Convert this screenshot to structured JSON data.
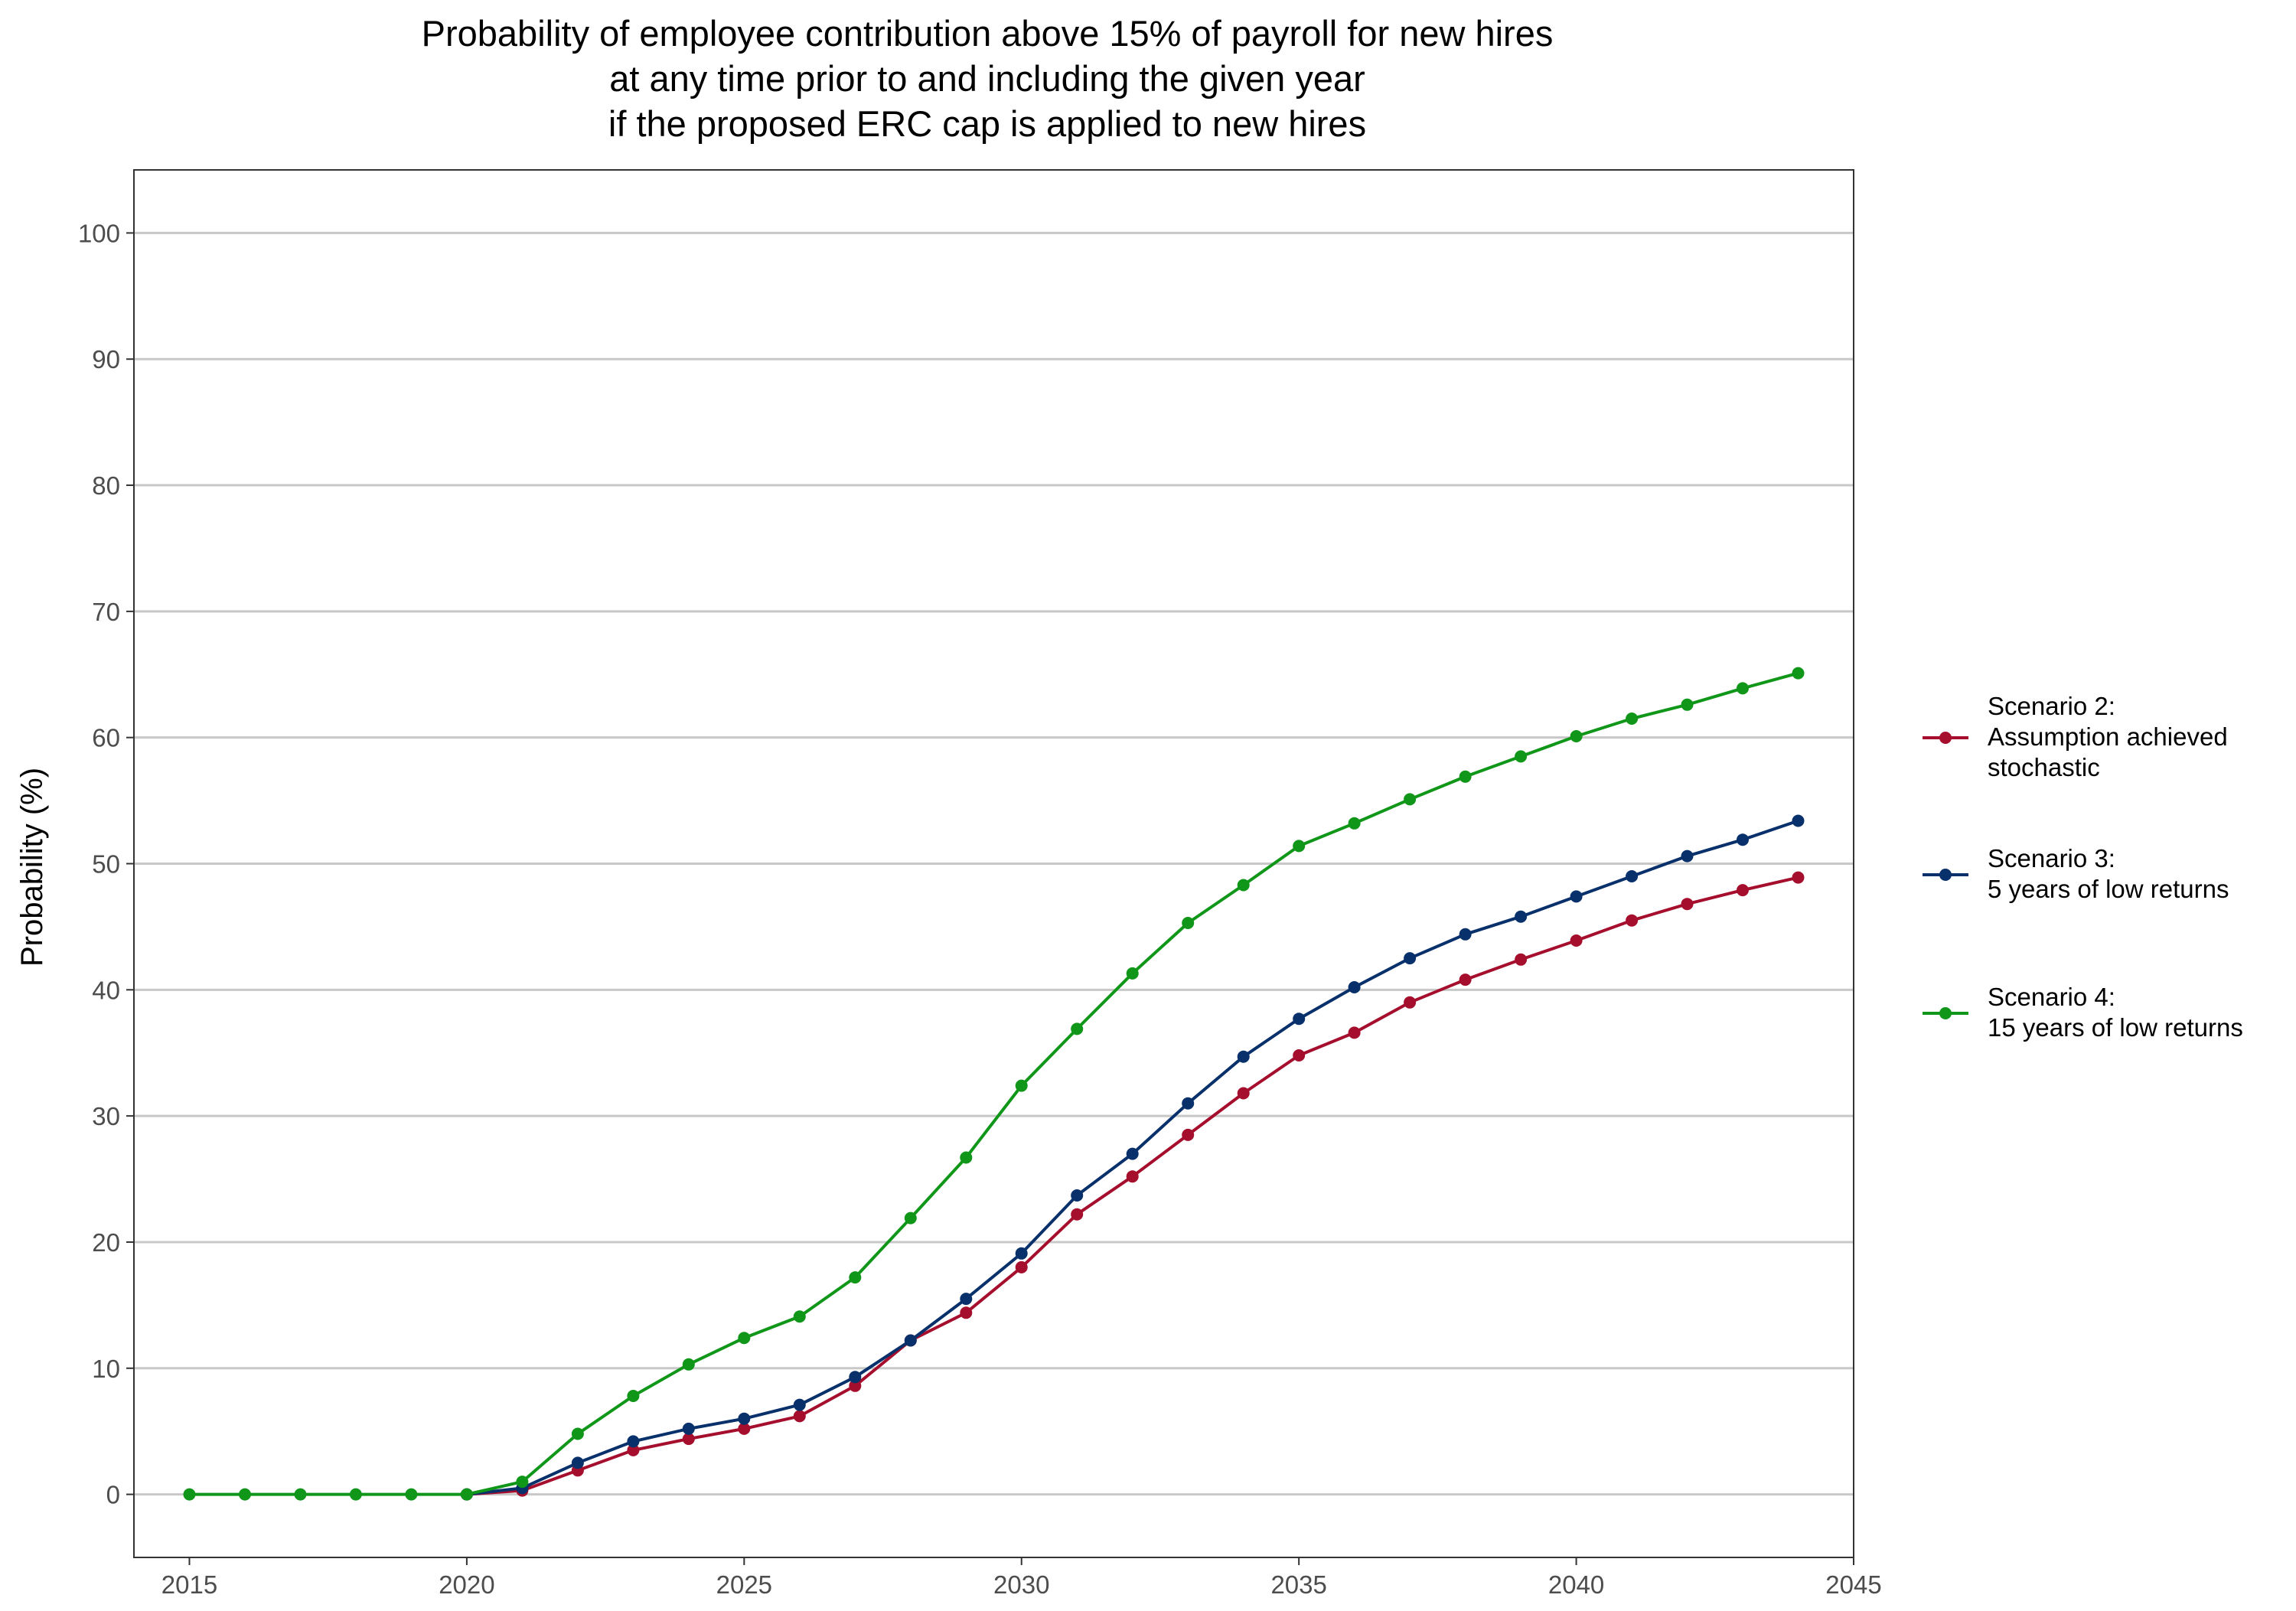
{
  "chart_data": {
    "type": "line",
    "title_lines": [
      "Probability of employee contribution above 15% of payroll for new hires",
      "at any time prior to and including the given year",
      "if the proposed ERC cap is applied to new hires"
    ],
    "xlabel": "",
    "ylabel": "Probability (%)",
    "xlim": [
      2014,
      2045
    ],
    "ylim": [
      -5,
      105
    ],
    "x_ticks": [
      2015,
      2020,
      2025,
      2030,
      2035,
      2040,
      2045
    ],
    "y_ticks": [
      0,
      10,
      20,
      30,
      40,
      50,
      60,
      70,
      80,
      90,
      100
    ],
    "grid": "horizontal major",
    "legend_position": "right",
    "x": [
      2015,
      2016,
      2017,
      2018,
      2019,
      2020,
      2021,
      2022,
      2023,
      2024,
      2025,
      2026,
      2027,
      2028,
      2029,
      2030,
      2031,
      2032,
      2033,
      2034,
      2035,
      2036,
      2037,
      2038,
      2039,
      2040,
      2041,
      2042,
      2043,
      2044
    ],
    "series": [
      {
        "name": "Scenario 2:\nAssumption achieved\nstochastic",
        "color": "#a50f2d",
        "values": [
          null,
          null,
          null,
          null,
          null,
          0.0,
          0.3,
          1.9,
          3.5,
          4.4,
          5.2,
          6.2,
          8.6,
          12.2,
          14.4,
          18.0,
          22.2,
          25.2,
          28.5,
          31.8,
          34.8,
          36.6,
          39.0,
          40.8,
          42.4,
          43.9,
          45.5,
          46.8,
          47.9,
          48.9
        ]
      },
      {
        "name": "Scenario 3:\n5 years of low returns",
        "color": "#08306b",
        "values": [
          null,
          null,
          null,
          null,
          null,
          0.0,
          0.5,
          2.5,
          4.2,
          5.2,
          6.0,
          7.1,
          9.3,
          12.2,
          15.5,
          19.1,
          23.7,
          27.0,
          31.0,
          34.7,
          37.7,
          40.2,
          42.5,
          44.4,
          45.8,
          47.4,
          49.0,
          50.6,
          51.9,
          53.4
        ]
      },
      {
        "name": "Scenario 4:\n15 years of low returns",
        "color": "#109618",
        "values": [
          0.0,
          0.0,
          0.0,
          0.0,
          0.0,
          0.0,
          1.0,
          4.8,
          7.8,
          10.3,
          12.4,
          14.1,
          17.2,
          21.9,
          26.7,
          32.4,
          36.9,
          41.3,
          45.3,
          48.3,
          51.4,
          53.2,
          55.1,
          56.9,
          58.5,
          60.1,
          61.5,
          62.6,
          63.9,
          65.1
        ]
      }
    ]
  }
}
